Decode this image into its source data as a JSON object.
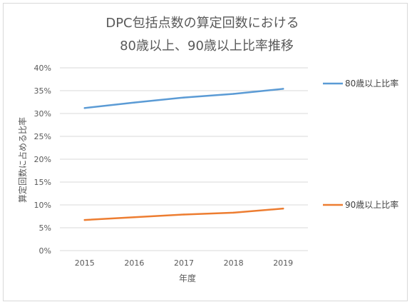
{
  "chart_data": {
    "type": "line",
    "title_lines": [
      "DPC包括点数の算定回数における",
      "80歳以上、90歳以上比率推移"
    ],
    "xlabel": "年度",
    "ylabel": "算定回数に占める比率",
    "categories": [
      "2015",
      "2016",
      "2017",
      "2018",
      "2019"
    ],
    "ylim": [
      0,
      0.4
    ],
    "yticks": [
      "0%",
      "5%",
      "10%",
      "15%",
      "20%",
      "25%",
      "30%",
      "35%",
      "40%"
    ],
    "grid": true,
    "legend_placement": "right",
    "series": [
      {
        "name": "80歳以上比率",
        "color": "#5b9bd5",
        "values": [
          0.312,
          0.324,
          0.335,
          0.343,
          0.354
        ]
      },
      {
        "name": "90歳以上比率",
        "color": "#ed7d31",
        "values": [
          0.067,
          0.073,
          0.079,
          0.083,
          0.092
        ]
      }
    ]
  }
}
